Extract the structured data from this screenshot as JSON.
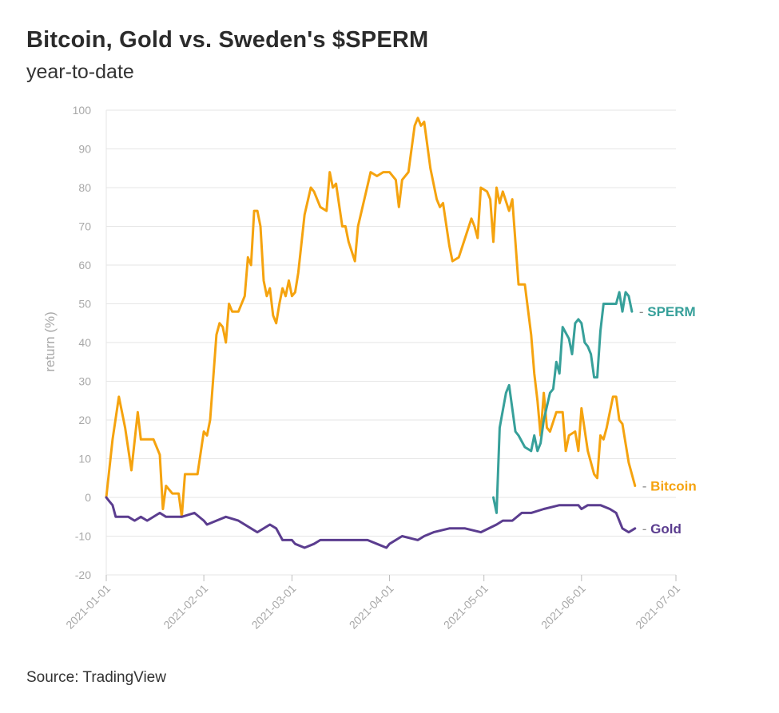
{
  "header": {
    "title": "Bitcoin, Gold vs. Sweden's $SPERM",
    "subtitle": "year-to-date"
  },
  "footer": {
    "source": "Source: TradingView"
  },
  "colors": {
    "bitcoin": "#f5a30f",
    "sperm": "#37a09a",
    "gold": "#5b3d8f",
    "grid": "#e6e6e6",
    "axis_text": "#a8a8a8"
  },
  "chart_data": {
    "type": "line",
    "ylabel": "return (%)",
    "xlabel": "",
    "ylim": [
      -20,
      100
    ],
    "y_ticks": [
      -20,
      -10,
      0,
      10,
      20,
      30,
      40,
      50,
      60,
      70,
      80,
      90,
      100
    ],
    "x_ticks": [
      "2021-01-01",
      "2021-02-01",
      "2021-03-01",
      "2021-04-01",
      "2021-05-01",
      "2021-06-01",
      "2021-07-01"
    ],
    "grid": true,
    "series": [
      {
        "name": "Bitcoin",
        "color": "#f5a30f",
        "points": [
          [
            "2021-01-01",
            0
          ],
          [
            "2021-01-03",
            15
          ],
          [
            "2021-01-05",
            26
          ],
          [
            "2021-01-07",
            18
          ],
          [
            "2021-01-09",
            7
          ],
          [
            "2021-01-11",
            22
          ],
          [
            "2021-01-12",
            15
          ],
          [
            "2021-01-16",
            15
          ],
          [
            "2021-01-18",
            11
          ],
          [
            "2021-01-19",
            -3
          ],
          [
            "2021-01-20",
            3
          ],
          [
            "2021-01-22",
            1
          ],
          [
            "2021-01-24",
            1
          ],
          [
            "2021-01-25",
            -5
          ],
          [
            "2021-01-26",
            6
          ],
          [
            "2021-01-28",
            6
          ],
          [
            "2021-01-30",
            6
          ],
          [
            "2021-02-01",
            17
          ],
          [
            "2021-02-02",
            16
          ],
          [
            "2021-02-03",
            20
          ],
          [
            "2021-02-05",
            42
          ],
          [
            "2021-02-06",
            45
          ],
          [
            "2021-02-07",
            44
          ],
          [
            "2021-02-08",
            40
          ],
          [
            "2021-02-09",
            50
          ],
          [
            "2021-02-10",
            48
          ],
          [
            "2021-02-12",
            48
          ],
          [
            "2021-02-14",
            52
          ],
          [
            "2021-02-15",
            62
          ],
          [
            "2021-02-16",
            60
          ],
          [
            "2021-02-17",
            74
          ],
          [
            "2021-02-18",
            74
          ],
          [
            "2021-02-19",
            70
          ],
          [
            "2021-02-20",
            56
          ],
          [
            "2021-02-21",
            52
          ],
          [
            "2021-02-22",
            54
          ],
          [
            "2021-02-23",
            47
          ],
          [
            "2021-02-24",
            45
          ],
          [
            "2021-02-25",
            50
          ],
          [
            "2021-02-26",
            54
          ],
          [
            "2021-02-27",
            52
          ],
          [
            "2021-02-28",
            56
          ],
          [
            "2021-03-01",
            52
          ],
          [
            "2021-03-02",
            53
          ],
          [
            "2021-03-03",
            58
          ],
          [
            "2021-03-05",
            73
          ],
          [
            "2021-03-07",
            80
          ],
          [
            "2021-03-08",
            79
          ],
          [
            "2021-03-10",
            75
          ],
          [
            "2021-03-12",
            74
          ],
          [
            "2021-03-13",
            84
          ],
          [
            "2021-03-14",
            80
          ],
          [
            "2021-03-15",
            81
          ],
          [
            "2021-03-17",
            70
          ],
          [
            "2021-03-18",
            70
          ],
          [
            "2021-03-19",
            66
          ],
          [
            "2021-03-21",
            61
          ],
          [
            "2021-03-22",
            70
          ],
          [
            "2021-03-24",
            77
          ],
          [
            "2021-03-26",
            84
          ],
          [
            "2021-03-28",
            83
          ],
          [
            "2021-03-30",
            84
          ],
          [
            "2021-04-01",
            84
          ],
          [
            "2021-04-03",
            82
          ],
          [
            "2021-04-04",
            75
          ],
          [
            "2021-04-05",
            82
          ],
          [
            "2021-04-07",
            84
          ],
          [
            "2021-04-09",
            96
          ],
          [
            "2021-04-10",
            98
          ],
          [
            "2021-04-11",
            96
          ],
          [
            "2021-04-12",
            97
          ],
          [
            "2021-04-14",
            85
          ],
          [
            "2021-04-16",
            77
          ],
          [
            "2021-04-17",
            75
          ],
          [
            "2021-04-18",
            76
          ],
          [
            "2021-04-20",
            65
          ],
          [
            "2021-04-21",
            61
          ],
          [
            "2021-04-23",
            62
          ],
          [
            "2021-04-25",
            67
          ],
          [
            "2021-04-27",
            72
          ],
          [
            "2021-04-28",
            70
          ],
          [
            "2021-04-29",
            67
          ],
          [
            "2021-04-30",
            80
          ],
          [
            "2021-05-02",
            79
          ],
          [
            "2021-05-03",
            77
          ],
          [
            "2021-05-04",
            66
          ],
          [
            "2021-05-05",
            80
          ],
          [
            "2021-05-06",
            76
          ],
          [
            "2021-05-07",
            79
          ],
          [
            "2021-05-09",
            74
          ],
          [
            "2021-05-10",
            77
          ],
          [
            "2021-05-12",
            55
          ],
          [
            "2021-05-14",
            55
          ],
          [
            "2021-05-16",
            42
          ],
          [
            "2021-05-17",
            32
          ],
          [
            "2021-05-18",
            25
          ],
          [
            "2021-05-19",
            16
          ],
          [
            "2021-05-20",
            27
          ],
          [
            "2021-05-21",
            18
          ],
          [
            "2021-05-22",
            17
          ],
          [
            "2021-05-24",
            22
          ],
          [
            "2021-05-26",
            22
          ],
          [
            "2021-05-27",
            12
          ],
          [
            "2021-05-28",
            16
          ],
          [
            "2021-05-30",
            17
          ],
          [
            "2021-05-31",
            12
          ],
          [
            "2021-06-01",
            23
          ],
          [
            "2021-06-03",
            12
          ],
          [
            "2021-06-05",
            6
          ],
          [
            "2021-06-06",
            5
          ],
          [
            "2021-06-07",
            16
          ],
          [
            "2021-06-08",
            15
          ],
          [
            "2021-06-09",
            18
          ],
          [
            "2021-06-11",
            26
          ],
          [
            "2021-06-12",
            26
          ],
          [
            "2021-06-13",
            20
          ],
          [
            "2021-06-14",
            19
          ],
          [
            "2021-06-16",
            9
          ],
          [
            "2021-06-18",
            3
          ]
        ]
      },
      {
        "name": "SPERM",
        "color": "#37a09a",
        "points": [
          [
            "2021-05-04",
            0
          ],
          [
            "2021-05-05",
            -4
          ],
          [
            "2021-05-06",
            18
          ],
          [
            "2021-05-08",
            27
          ],
          [
            "2021-05-09",
            29
          ],
          [
            "2021-05-11",
            17
          ],
          [
            "2021-05-12",
            16
          ],
          [
            "2021-05-14",
            13
          ],
          [
            "2021-05-16",
            12
          ],
          [
            "2021-05-17",
            16
          ],
          [
            "2021-05-18",
            12
          ],
          [
            "2021-05-19",
            14
          ],
          [
            "2021-05-20",
            20
          ],
          [
            "2021-05-22",
            27
          ],
          [
            "2021-05-23",
            28
          ],
          [
            "2021-05-24",
            35
          ],
          [
            "2021-05-25",
            32
          ],
          [
            "2021-05-26",
            44
          ],
          [
            "2021-05-28",
            41
          ],
          [
            "2021-05-29",
            37
          ],
          [
            "2021-05-30",
            45
          ],
          [
            "2021-05-31",
            46
          ],
          [
            "2021-06-01",
            45
          ],
          [
            "2021-06-02",
            40
          ],
          [
            "2021-06-03",
            39
          ],
          [
            "2021-06-04",
            37
          ],
          [
            "2021-06-05",
            31
          ],
          [
            "2021-06-06",
            31
          ],
          [
            "2021-06-07",
            43
          ],
          [
            "2021-06-08",
            50
          ],
          [
            "2021-06-12",
            50
          ],
          [
            "2021-06-13",
            53
          ],
          [
            "2021-06-14",
            48
          ],
          [
            "2021-06-15",
            53
          ],
          [
            "2021-06-16",
            52
          ],
          [
            "2021-06-17",
            48
          ]
        ]
      },
      {
        "name": "Gold",
        "color": "#5b3d8f",
        "points": [
          [
            "2021-01-01",
            0
          ],
          [
            "2021-01-02",
            -1
          ],
          [
            "2021-01-03",
            -2
          ],
          [
            "2021-01-04",
            -5
          ],
          [
            "2021-01-08",
            -5
          ],
          [
            "2021-01-10",
            -6
          ],
          [
            "2021-01-12",
            -5
          ],
          [
            "2021-01-14",
            -6
          ],
          [
            "2021-01-18",
            -4
          ],
          [
            "2021-01-20",
            -5
          ],
          [
            "2021-01-25",
            -5
          ],
          [
            "2021-01-29",
            -4
          ],
          [
            "2021-02-01",
            -6
          ],
          [
            "2021-02-02",
            -7
          ],
          [
            "2021-02-05",
            -6
          ],
          [
            "2021-02-08",
            -5
          ],
          [
            "2021-02-12",
            -6
          ],
          [
            "2021-02-16",
            -8
          ],
          [
            "2021-02-18",
            -9
          ],
          [
            "2021-02-22",
            -7
          ],
          [
            "2021-02-24",
            -8
          ],
          [
            "2021-02-26",
            -11
          ],
          [
            "2021-03-01",
            -11
          ],
          [
            "2021-03-02",
            -12
          ],
          [
            "2021-03-05",
            -13
          ],
          [
            "2021-03-08",
            -12
          ],
          [
            "2021-03-10",
            -11
          ],
          [
            "2021-03-15",
            -11
          ],
          [
            "2021-03-20",
            -11
          ],
          [
            "2021-03-25",
            -11
          ],
          [
            "2021-03-28",
            -12
          ],
          [
            "2021-03-31",
            -13
          ],
          [
            "2021-04-01",
            -12
          ],
          [
            "2021-04-05",
            -10
          ],
          [
            "2021-04-10",
            -11
          ],
          [
            "2021-04-12",
            -10
          ],
          [
            "2021-04-15",
            -9
          ],
          [
            "2021-04-20",
            -8
          ],
          [
            "2021-04-25",
            -8
          ],
          [
            "2021-04-30",
            -9
          ],
          [
            "2021-05-05",
            -7
          ],
          [
            "2021-05-07",
            -6
          ],
          [
            "2021-05-10",
            -6
          ],
          [
            "2021-05-13",
            -4
          ],
          [
            "2021-05-16",
            -4
          ],
          [
            "2021-05-20",
            -3
          ],
          [
            "2021-05-25",
            -2
          ],
          [
            "2021-05-28",
            -2
          ],
          [
            "2021-05-31",
            -2
          ],
          [
            "2021-06-01",
            -3
          ],
          [
            "2021-06-03",
            -2
          ],
          [
            "2021-06-07",
            -2
          ],
          [
            "2021-06-10",
            -3
          ],
          [
            "2021-06-12",
            -4
          ],
          [
            "2021-06-14",
            -8
          ],
          [
            "2021-06-16",
            -9
          ],
          [
            "2021-06-18",
            -8
          ]
        ]
      }
    ]
  }
}
